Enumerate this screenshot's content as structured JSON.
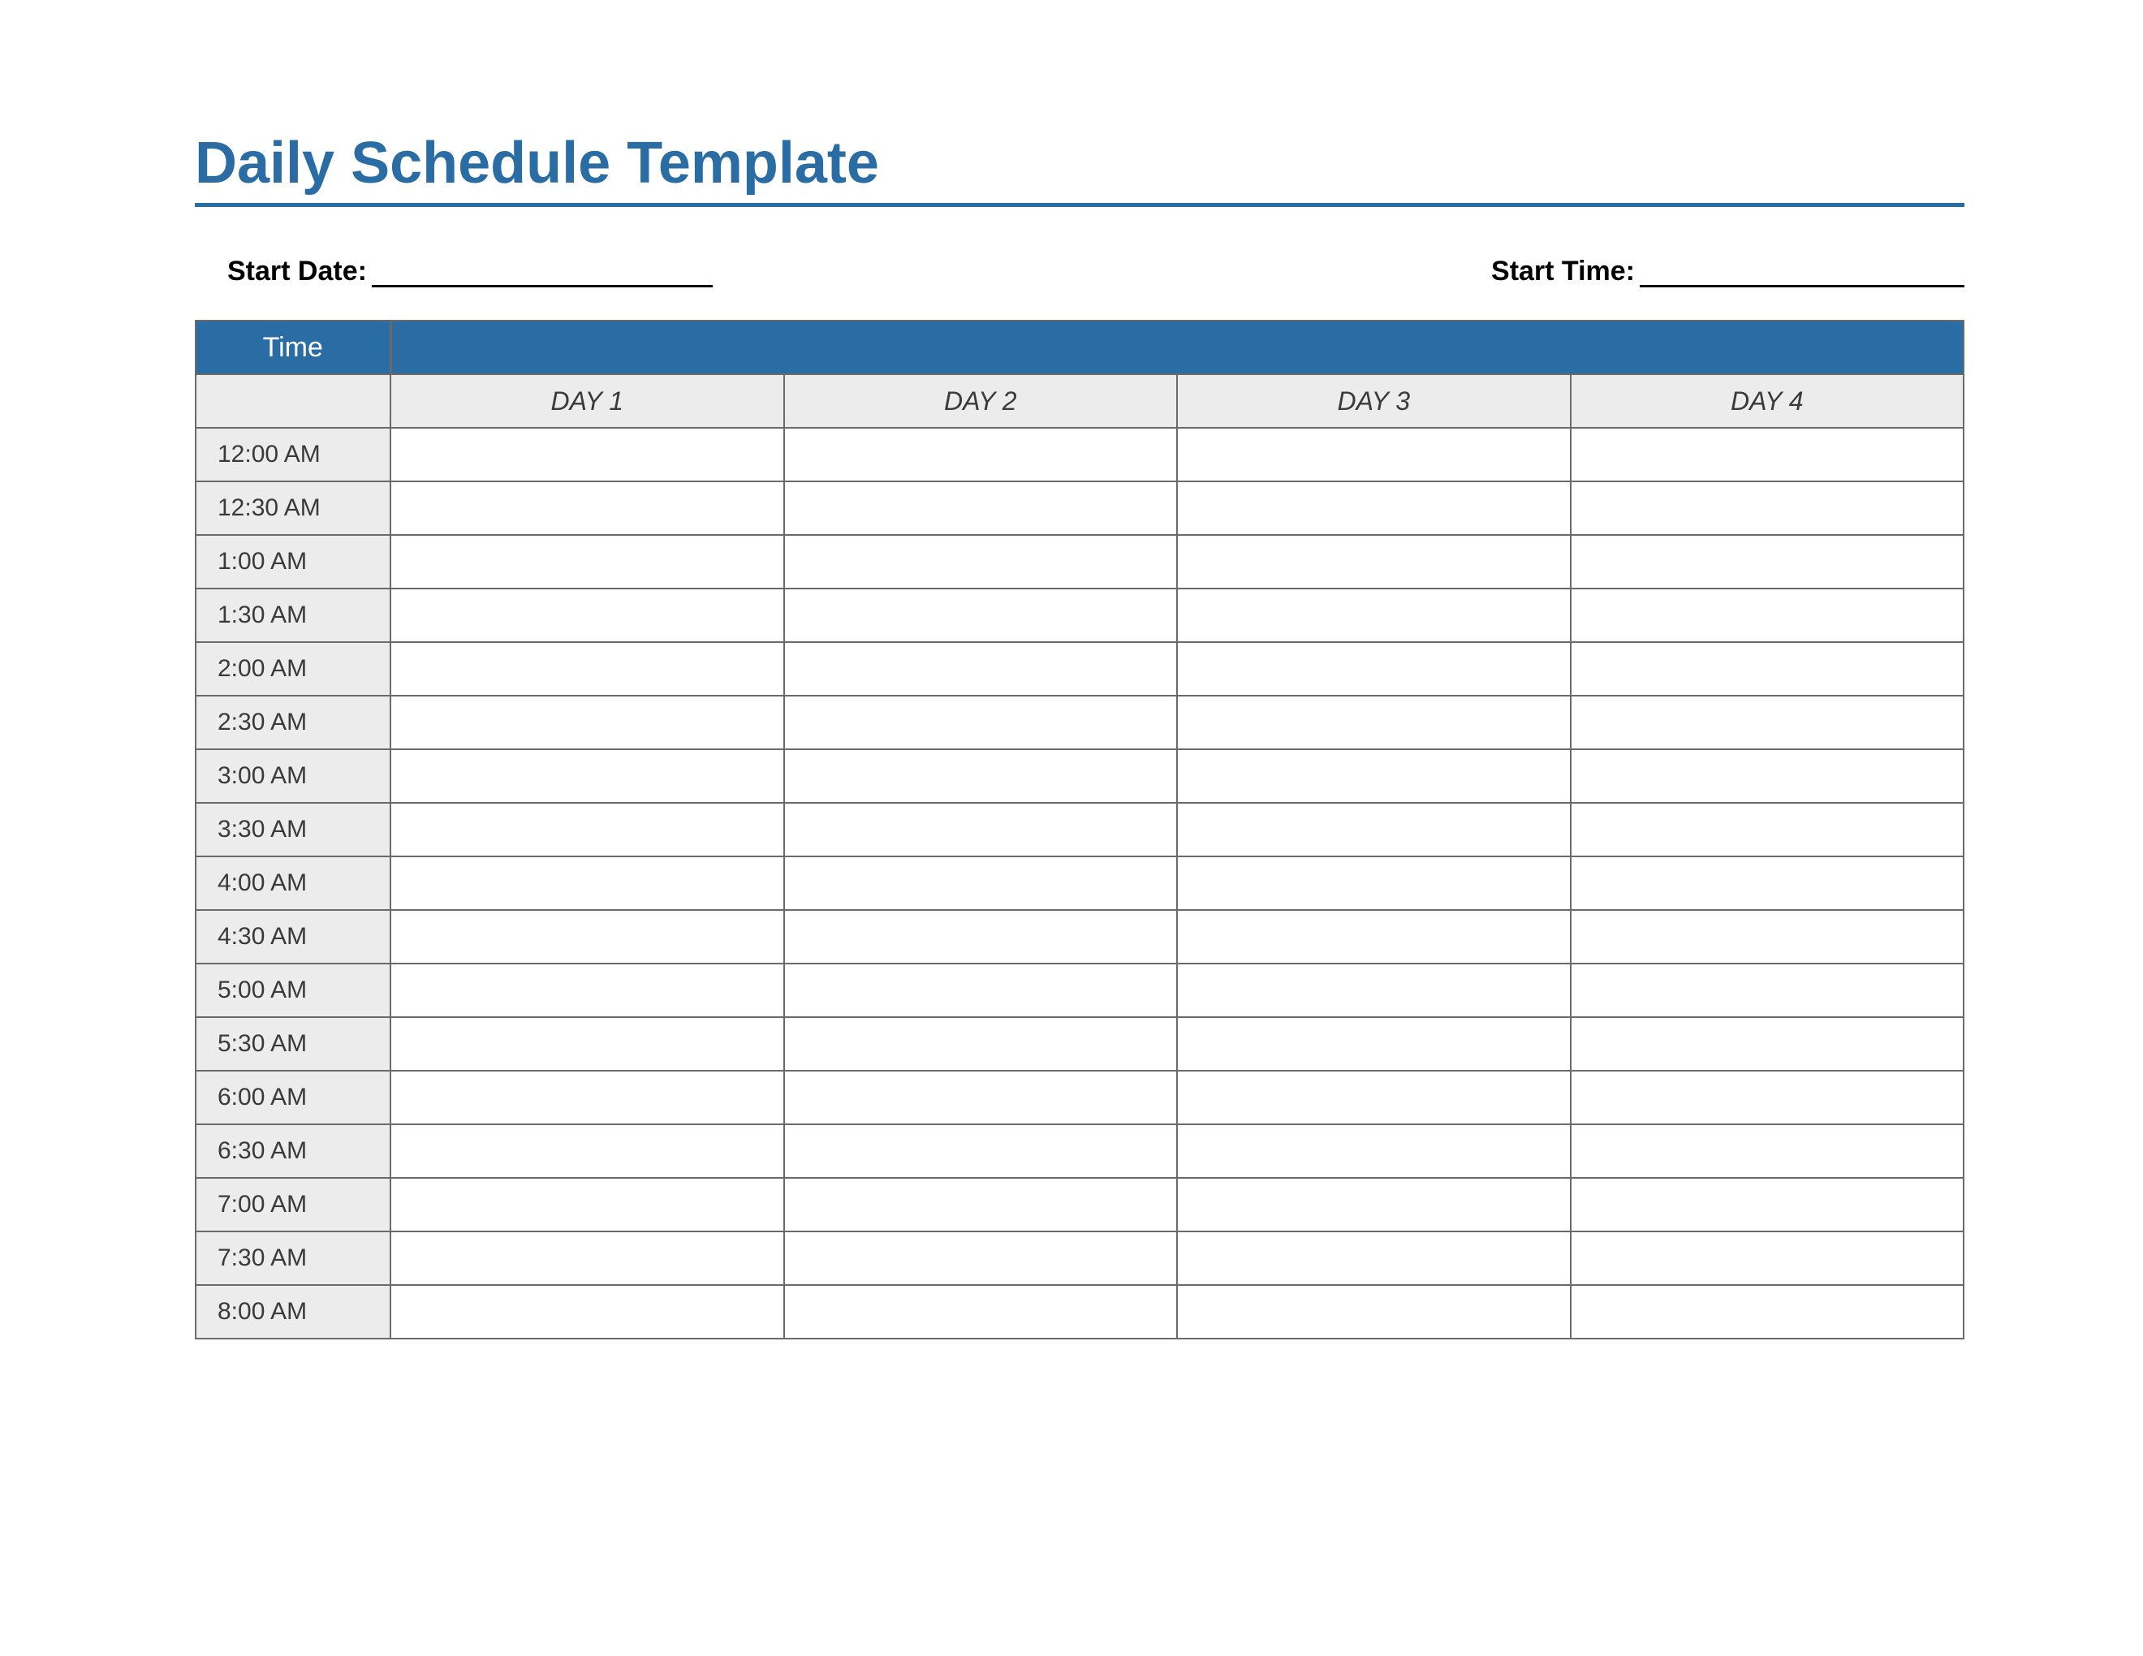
{
  "title": "Daily Schedule Template",
  "meta": {
    "start_date_label": "Start Date:",
    "start_time_label": "Start Time:"
  },
  "table": {
    "type": "table",
    "time_header": "Time",
    "day_headers": [
      "DAY 1",
      "DAY 2",
      "DAY 3",
      "DAY 4"
    ],
    "time_slots": [
      "12:00 AM",
      "12:30 AM",
      "1:00 AM",
      "1:30 AM",
      "2:00 AM",
      "2:30 AM",
      "3:00 AM",
      "3:30 AM",
      "4:00 AM",
      "4:30 AM",
      "5:00 AM",
      "5:30 AM",
      "6:00 AM",
      "6:30 AM",
      "7:00 AM",
      "7:30 AM",
      "8:00 AM"
    ],
    "colors": {
      "accent": "#2a6ca4",
      "border": "#6a6a6a",
      "row_header_bg": "#ececec",
      "text_dark": "#3a3a3a",
      "white": "#ffffff"
    },
    "fontsize": {
      "title": 72,
      "meta": 34,
      "time_header": 34,
      "day_header": 32,
      "time_cell": 30
    }
  }
}
